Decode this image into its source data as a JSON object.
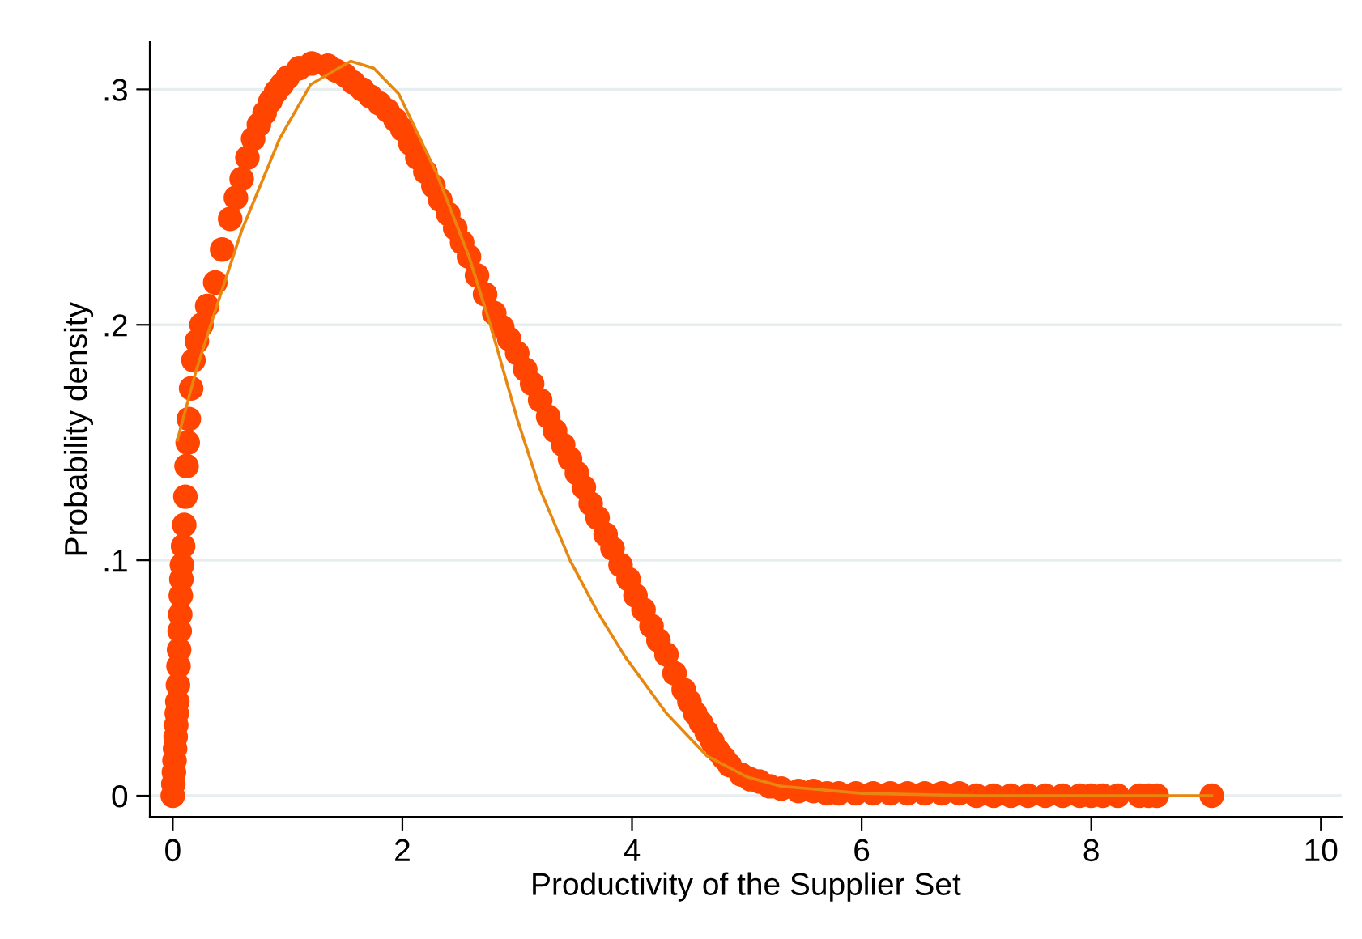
{
  "chart_data": {
    "type": "scatter",
    "xlabel": "Productivity of the Supplier Set",
    "ylabel": "Probability density",
    "xlim": [
      -0.2,
      10.18
    ],
    "ylim": [
      -0.009,
      0.32
    ],
    "xticks": [
      0,
      2,
      4,
      6,
      8,
      10
    ],
    "yticks": [
      {
        "value": 0,
        "label": "0"
      },
      {
        "value": 0.1,
        "label": ".1"
      },
      {
        "value": 0.2,
        "label": ".2"
      },
      {
        "value": 0.3,
        "label": ".3"
      }
    ],
    "grid": "y",
    "marker": "circle",
    "series": [
      {
        "color": "#ff4500",
        "x": [
          0,
          0.005,
          0.01,
          0.015,
          0.02,
          0.025,
          0.03,
          0.035,
          0.04,
          0.045,
          0.05,
          0.055,
          0.06,
          0.065,
          0.07,
          0.075,
          0.08,
          0.09,
          0.1,
          0.11,
          0.12,
          0.13,
          0.14,
          0.16,
          0.18,
          0.21,
          0.25,
          0.3,
          0.37,
          0.43,
          0.5,
          0.55,
          0.6,
          0.65,
          0.7,
          0.75,
          0.8,
          0.85,
          0.9,
          0.95,
          1.0,
          1.1,
          1.21,
          1.35,
          1.42,
          1.5,
          1.57,
          1.65,
          1.72,
          1.8,
          1.87,
          1.94,
          2.0,
          2.07,
          2.13,
          2.2,
          2.27,
          2.33,
          2.4,
          2.46,
          2.52,
          2.58,
          2.65,
          2.72,
          2.8,
          2.87,
          2.93,
          3.0,
          3.07,
          3.13,
          3.2,
          3.27,
          3.33,
          3.4,
          3.46,
          3.52,
          3.58,
          3.64,
          3.7,
          3.77,
          3.83,
          3.9,
          3.97,
          4.03,
          4.1,
          4.17,
          4.23,
          4.3,
          4.37,
          4.45,
          4.5,
          4.55,
          4.6,
          4.65,
          4.7,
          4.75,
          4.8,
          4.85,
          4.95,
          5.03,
          5.11,
          5.2,
          5.3,
          5.45,
          5.58,
          5.7,
          5.8,
          5.95,
          6.1,
          6.25,
          6.4,
          6.55,
          6.7,
          6.85,
          7.0,
          7.15,
          7.3,
          7.45,
          7.6,
          7.75,
          7.9,
          8.0,
          8.1,
          8.23,
          8.42,
          8.5,
          8.57,
          9.05
        ],
        "values": [
          0,
          0.005,
          0.01,
          0.015,
          0.02,
          0.025,
          0.03,
          0.035,
          0.04,
          0.047,
          0.055,
          0.062,
          0.07,
          0.077,
          0.085,
          0.092,
          0.098,
          0.106,
          0.115,
          0.127,
          0.14,
          0.15,
          0.16,
          0.173,
          0.185,
          0.193,
          0.2,
          0.208,
          0.218,
          0.232,
          0.245,
          0.254,
          0.262,
          0.271,
          0.279,
          0.285,
          0.29,
          0.295,
          0.299,
          0.302,
          0.305,
          0.309,
          0.311,
          0.31,
          0.308,
          0.306,
          0.303,
          0.3,
          0.297,
          0.294,
          0.291,
          0.287,
          0.283,
          0.277,
          0.271,
          0.265,
          0.259,
          0.253,
          0.247,
          0.241,
          0.235,
          0.229,
          0.221,
          0.213,
          0.205,
          0.199,
          0.194,
          0.188,
          0.181,
          0.175,
          0.168,
          0.161,
          0.155,
          0.149,
          0.143,
          0.137,
          0.131,
          0.124,
          0.118,
          0.111,
          0.105,
          0.098,
          0.092,
          0.085,
          0.079,
          0.072,
          0.066,
          0.06,
          0.052,
          0.045,
          0.04,
          0.035,
          0.031,
          0.027,
          0.023,
          0.019,
          0.016,
          0.013,
          0.009,
          0.007,
          0.006,
          0.004,
          0.003,
          0.002,
          0.002,
          0.001,
          0.001,
          0.001,
          0.001,
          0.001,
          0.001,
          0.001,
          0.001,
          0.001,
          0,
          0,
          0,
          0,
          0,
          0,
          0,
          0,
          0,
          0,
          0,
          0,
          0,
          0
        ]
      },
      {
        "type": "line",
        "color": "#e8870f",
        "marker": "none",
        "x": [
          0.04,
          0.2,
          0.37,
          0.6,
          0.93,
          1.2,
          1.55,
          1.75,
          1.97,
          2.3,
          2.58,
          2.76,
          3.0,
          3.2,
          3.46,
          3.7,
          3.94,
          4.3,
          4.65,
          5.0,
          5.3,
          6.0,
          7.0,
          9.05
        ],
        "values": [
          0.151,
          0.18,
          0.206,
          0.24,
          0.279,
          0.302,
          0.312,
          0.309,
          0.298,
          0.264,
          0.229,
          0.201,
          0.16,
          0.13,
          0.1,
          0.078,
          0.059,
          0.035,
          0.017,
          0.008,
          0.004,
          0.001,
          0,
          0
        ]
      }
    ]
  }
}
